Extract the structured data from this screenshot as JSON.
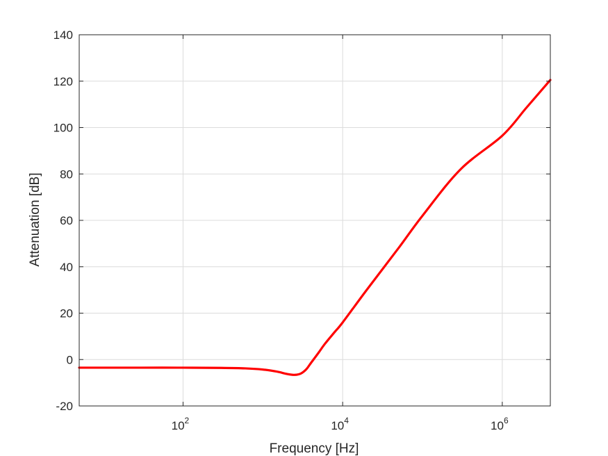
{
  "chart_data": {
    "type": "line",
    "title": "",
    "xlabel": "Frequency [Hz]",
    "ylabel": "Attenuation [dB]",
    "xscale": "log",
    "xlim": [
      5,
      4000000
    ],
    "ylim": [
      -20,
      140
    ],
    "grid": true,
    "legend": "none",
    "x_ticks": [
      {
        "value": 100,
        "base": "10",
        "exp": "2"
      },
      {
        "value": 10000,
        "base": "10",
        "exp": "4"
      },
      {
        "value": 1000000,
        "base": "10",
        "exp": "6"
      }
    ],
    "y_ticks": [
      -20,
      0,
      20,
      40,
      60,
      80,
      100,
      120,
      140
    ],
    "series": [
      {
        "color": "#ff0000",
        "x": [
          5,
          10,
          30,
          100,
          300,
          600,
          1000,
          1500,
          2000,
          2500,
          3000,
          3500,
          4000,
          5000,
          6000,
          8000,
          10000,
          20000,
          50000,
          100000,
          300000,
          1000000,
          2000000,
          4000000
        ],
        "y": [
          -3.5,
          -3.5,
          -3.5,
          -3.5,
          -3.6,
          -3.8,
          -4.3,
          -5.2,
          -6.2,
          -6.6,
          -6.0,
          -4.2,
          -1.5,
          3.0,
          6.8,
          12.0,
          16.0,
          30.0,
          48.0,
          62.0,
          82.0,
          96.5,
          108.5,
          120.5
        ]
      }
    ]
  }
}
